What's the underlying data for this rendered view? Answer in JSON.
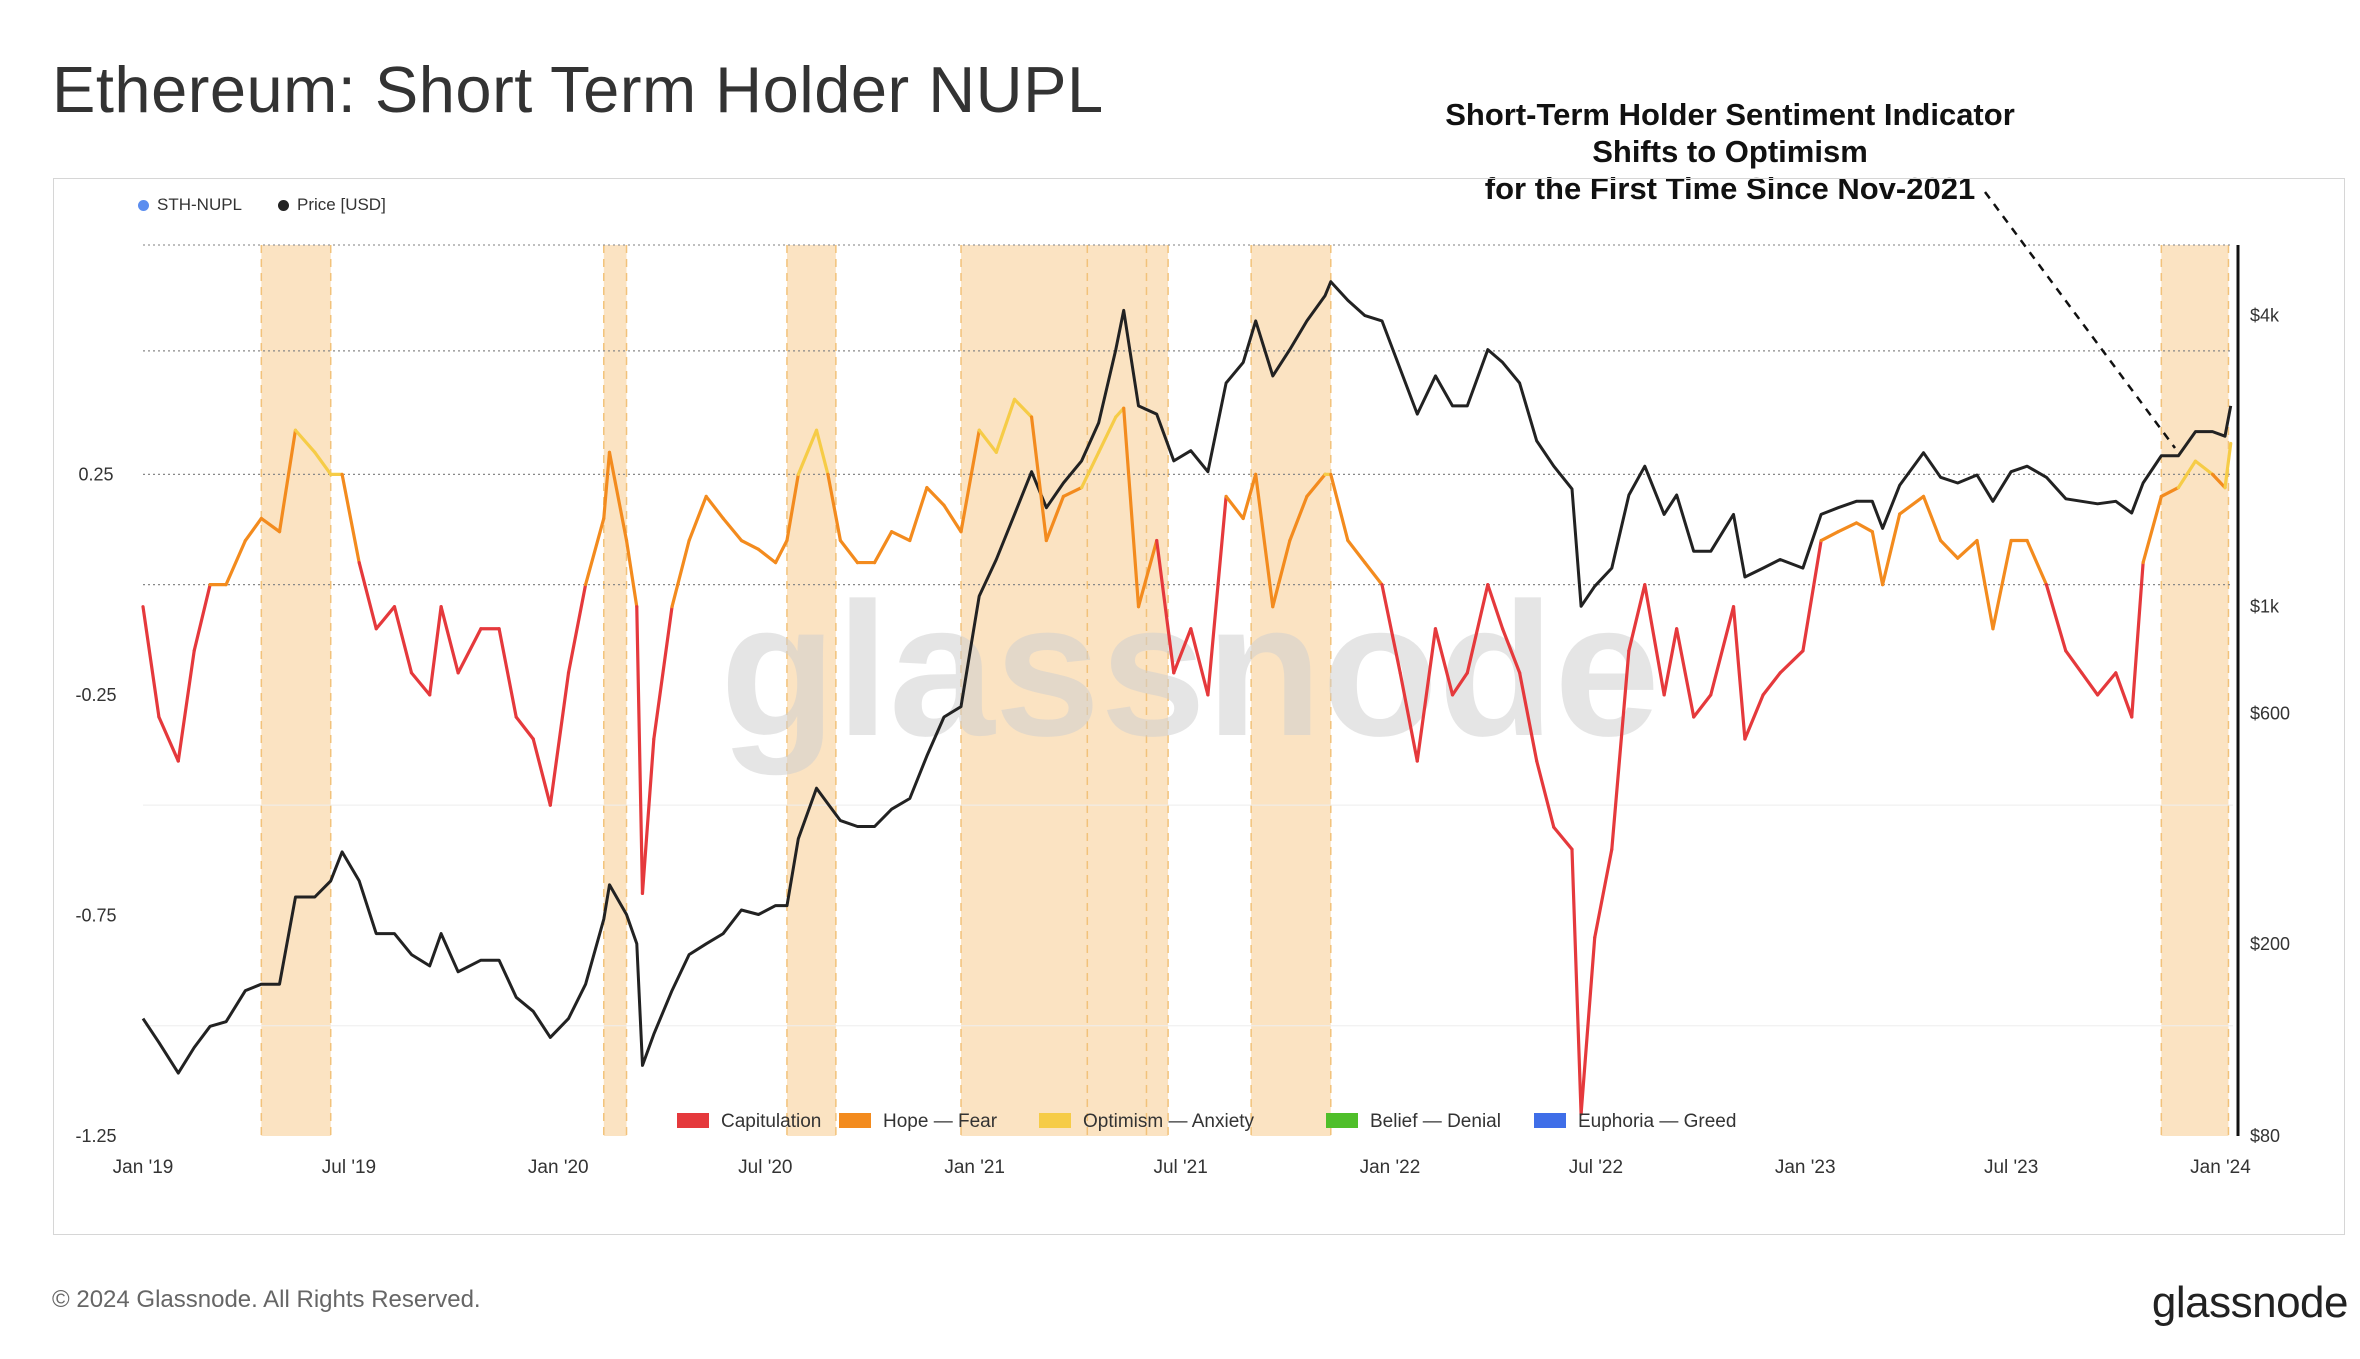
{
  "title": "Ethereum: Short Term Holder NUPL",
  "annotation": {
    "lines": [
      "Short-Term Holder Sentiment Indicator",
      "Shifts to Optimism",
      "for the First Time Since Nov-2021"
    ]
  },
  "footer": "© 2024 Glassnode. All Rights Reserved.",
  "brand": "glassnode",
  "watermark": "glassnode",
  "colors": {
    "capitulation": "#e5393c",
    "hope_fear": "#f38b1e",
    "optimism_anxiety": "#f6cc47",
    "belief_denial": "#4fbf2a",
    "euphoria_greed": "#3f6ee8",
    "price": "#222222",
    "sth_nupl_dot": "#5b8def",
    "highlight": "#fbe3c2"
  },
  "chart_data": {
    "type": "line",
    "top_legend": [
      {
        "label": "STH-NUPL",
        "color": "#5b8def"
      },
      {
        "label": "Price [USD]",
        "color": "#222222"
      }
    ],
    "zone_legend": [
      {
        "label": "Capitulation",
        "color": "#e5393c"
      },
      {
        "label": "Hope — Fear",
        "color": "#f38b1e"
      },
      {
        "label": "Optimism — Anxiety",
        "color": "#f6cc47"
      },
      {
        "label": "Belief — Denial",
        "color": "#4fbf2a"
      },
      {
        "label": "Euphoria — Greed",
        "color": "#3f6ee8"
      }
    ],
    "x_ticks": [
      "Jan '19",
      "Jul '19",
      "Jan '20",
      "Jul '20",
      "Jan '21",
      "Jul '21",
      "Jan '22",
      "Jul '22",
      "Jan '23",
      "Jul '23",
      "Jan '24"
    ],
    "xlim": [
      "2019-01-01",
      "2024-01-12"
    ],
    "left_axis": {
      "ticks": [
        0.25,
        -0.25,
        -0.75,
        -1.25
      ],
      "labels": [
        "0.25",
        "-0.25",
        "-0.75",
        "-1.25"
      ],
      "range": [
        -1.25,
        0.77
      ]
    },
    "right_axis": {
      "scale": "log",
      "ticks": [
        4000,
        1000,
        600,
        200,
        80
      ],
      "labels": [
        "$4k",
        "$1k",
        "$600",
        "$200",
        "$80"
      ],
      "range": [
        80,
        5600
      ]
    },
    "highlight_periods": [
      [
        "2019-04-15",
        "2019-06-15"
      ],
      [
        "2020-02-10",
        "2020-03-01"
      ],
      [
        "2020-07-20",
        "2020-09-01"
      ],
      [
        "2020-12-20",
        "2021-06-20"
      ],
      [
        "2021-04-10",
        "2021-06-01"
      ],
      [
        "2021-09-01",
        "2021-11-10"
      ],
      [
        "2023-11-10",
        "2024-01-08"
      ]
    ],
    "price_series": {
      "name": "Price [USD]",
      "points": [
        [
          "2019-01-01",
          140
        ],
        [
          "2019-01-15",
          125
        ],
        [
          "2019-02-01",
          108
        ],
        [
          "2019-02-15",
          122
        ],
        [
          "2019-03-01",
          135
        ],
        [
          "2019-03-15",
          138
        ],
        [
          "2019-04-01",
          160
        ],
        [
          "2019-04-15",
          165
        ],
        [
          "2019-05-01",
          165
        ],
        [
          "2019-05-15",
          250
        ],
        [
          "2019-06-01",
          250
        ],
        [
          "2019-06-15",
          270
        ],
        [
          "2019-06-25",
          310
        ],
        [
          "2019-07-10",
          270
        ],
        [
          "2019-07-25",
          210
        ],
        [
          "2019-08-10",
          210
        ],
        [
          "2019-08-25",
          190
        ],
        [
          "2019-09-10",
          180
        ],
        [
          "2019-09-20",
          210
        ],
        [
          "2019-10-05",
          175
        ],
        [
          "2019-10-25",
          185
        ],
        [
          "2019-11-10",
          185
        ],
        [
          "2019-11-25",
          155
        ],
        [
          "2019-12-10",
          145
        ],
        [
          "2019-12-25",
          128
        ],
        [
          "2020-01-10",
          140
        ],
        [
          "2020-01-25",
          165
        ],
        [
          "2020-02-10",
          225
        ],
        [
          "2020-02-15",
          265
        ],
        [
          "2020-03-01",
          230
        ],
        [
          "2020-03-10",
          200
        ],
        [
          "2020-03-15",
          112
        ],
        [
          "2020-03-25",
          130
        ],
        [
          "2020-04-10",
          160
        ],
        [
          "2020-04-25",
          190
        ],
        [
          "2020-05-10",
          200
        ],
        [
          "2020-05-25",
          210
        ],
        [
          "2020-06-10",
          235
        ],
        [
          "2020-06-25",
          230
        ],
        [
          "2020-07-10",
          240
        ],
        [
          "2020-07-20",
          240
        ],
        [
          "2020-07-30",
          330
        ],
        [
          "2020-08-15",
          420
        ],
        [
          "2020-08-25",
          390
        ],
        [
          "2020-09-05",
          360
        ],
        [
          "2020-09-20",
          350
        ],
        [
          "2020-10-05",
          350
        ],
        [
          "2020-10-20",
          380
        ],
        [
          "2020-11-05",
          400
        ],
        [
          "2020-11-20",
          490
        ],
        [
          "2020-12-05",
          590
        ],
        [
          "2020-12-20",
          620
        ],
        [
          "2021-01-05",
          1050
        ],
        [
          "2021-01-20",
          1250
        ],
        [
          "2021-02-05",
          1550
        ],
        [
          "2021-02-20",
          1900
        ],
        [
          "2021-03-05",
          1600
        ],
        [
          "2021-03-20",
          1800
        ],
        [
          "2021-04-05",
          2000
        ],
        [
          "2021-04-20",
          2400
        ],
        [
          "2021-05-05",
          3400
        ],
        [
          "2021-05-12",
          4100
        ],
        [
          "2021-05-25",
          2600
        ],
        [
          "2021-06-10",
          2500
        ],
        [
          "2021-06-25",
          2000
        ],
        [
          "2021-07-10",
          2100
        ],
        [
          "2021-07-25",
          1900
        ],
        [
          "2021-08-10",
          2900
        ],
        [
          "2021-08-25",
          3200
        ],
        [
          "2021-09-05",
          3900
        ],
        [
          "2021-09-20",
          3000
        ],
        [
          "2021-10-05",
          3400
        ],
        [
          "2021-10-20",
          3900
        ],
        [
          "2021-11-05",
          4400
        ],
        [
          "2021-11-10",
          4700
        ],
        [
          "2021-11-25",
          4300
        ],
        [
          "2021-12-10",
          4000
        ],
        [
          "2021-12-25",
          3900
        ],
        [
          "2022-01-10",
          3100
        ],
        [
          "2022-01-25",
          2500
        ],
        [
          "2022-02-10",
          3000
        ],
        [
          "2022-02-25",
          2600
        ],
        [
          "2022-03-10",
          2600
        ],
        [
          "2022-03-28",
          3400
        ],
        [
          "2022-04-10",
          3200
        ],
        [
          "2022-04-25",
          2900
        ],
        [
          "2022-05-10",
          2200
        ],
        [
          "2022-05-25",
          1950
        ],
        [
          "2022-06-10",
          1750
        ],
        [
          "2022-06-18",
          1000
        ],
        [
          "2022-06-30",
          1100
        ],
        [
          "2022-07-15",
          1200
        ],
        [
          "2022-07-30",
          1700
        ],
        [
          "2022-08-13",
          1950
        ],
        [
          "2022-08-30",
          1550
        ],
        [
          "2022-09-10",
          1700
        ],
        [
          "2022-09-25",
          1300
        ],
        [
          "2022-10-10",
          1300
        ],
        [
          "2022-10-30",
          1550
        ],
        [
          "2022-11-09",
          1150
        ],
        [
          "2022-11-25",
          1200
        ],
        [
          "2022-12-10",
          1250
        ],
        [
          "2022-12-30",
          1200
        ],
        [
          "2023-01-15",
          1550
        ],
        [
          "2023-01-30",
          1600
        ],
        [
          "2023-02-15",
          1650
        ],
        [
          "2023-03-01",
          1650
        ],
        [
          "2023-03-10",
          1450
        ],
        [
          "2023-03-25",
          1780
        ],
        [
          "2023-04-15",
          2080
        ],
        [
          "2023-04-30",
          1850
        ],
        [
          "2023-05-15",
          1800
        ],
        [
          "2023-06-01",
          1870
        ],
        [
          "2023-06-15",
          1650
        ],
        [
          "2023-07-01",
          1900
        ],
        [
          "2023-07-15",
          1950
        ],
        [
          "2023-08-01",
          1850
        ],
        [
          "2023-08-18",
          1670
        ],
        [
          "2023-09-01",
          1650
        ],
        [
          "2023-09-15",
          1630
        ],
        [
          "2023-10-01",
          1650
        ],
        [
          "2023-10-15",
          1560
        ],
        [
          "2023-10-25",
          1800
        ],
        [
          "2023-11-10",
          2050
        ],
        [
          "2023-11-25",
          2050
        ],
        [
          "2023-12-10",
          2300
        ],
        [
          "2023-12-25",
          2300
        ],
        [
          "2024-01-05",
          2250
        ],
        [
          "2024-01-10",
          2600
        ]
      ]
    },
    "sth_nupl_series": {
      "name": "STH-NUPL",
      "points": [
        [
          "2019-01-01",
          -0.05
        ],
        [
          "2019-01-15",
          -0.3
        ],
        [
          "2019-02-01",
          -0.4
        ],
        [
          "2019-02-15",
          -0.15
        ],
        [
          "2019-03-01",
          0.0
        ],
        [
          "2019-03-15",
          0.0
        ],
        [
          "2019-04-01",
          0.1
        ],
        [
          "2019-04-15",
          0.15
        ],
        [
          "2019-05-01",
          0.12
        ],
        [
          "2019-05-15",
          0.35
        ],
        [
          "2019-06-01",
          0.3
        ],
        [
          "2019-06-15",
          0.25
        ],
        [
          "2019-06-25",
          0.25
        ],
        [
          "2019-07-10",
          0.05
        ],
        [
          "2019-07-25",
          -0.1
        ],
        [
          "2019-08-10",
          -0.05
        ],
        [
          "2019-08-25",
          -0.2
        ],
        [
          "2019-09-10",
          -0.25
        ],
        [
          "2019-09-20",
          -0.05
        ],
        [
          "2019-10-05",
          -0.2
        ],
        [
          "2019-10-25",
          -0.1
        ],
        [
          "2019-11-10",
          -0.1
        ],
        [
          "2019-11-25",
          -0.3
        ],
        [
          "2019-12-10",
          -0.35
        ],
        [
          "2019-12-25",
          -0.5
        ],
        [
          "2020-01-10",
          -0.2
        ],
        [
          "2020-01-25",
          0.0
        ],
        [
          "2020-02-10",
          0.15
        ],
        [
          "2020-02-15",
          0.3
        ],
        [
          "2020-03-01",
          0.1
        ],
        [
          "2020-03-10",
          -0.05
        ],
        [
          "2020-03-15",
          -0.7
        ],
        [
          "2020-03-25",
          -0.35
        ],
        [
          "2020-04-10",
          -0.05
        ],
        [
          "2020-04-25",
          0.1
        ],
        [
          "2020-05-10",
          0.2
        ],
        [
          "2020-05-25",
          0.15
        ],
        [
          "2020-06-10",
          0.1
        ],
        [
          "2020-06-25",
          0.08
        ],
        [
          "2020-07-10",
          0.05
        ],
        [
          "2020-07-20",
          0.1
        ],
        [
          "2020-07-30",
          0.25
        ],
        [
          "2020-08-15",
          0.35
        ],
        [
          "2020-08-25",
          0.25
        ],
        [
          "2020-09-05",
          0.1
        ],
        [
          "2020-09-20",
          0.05
        ],
        [
          "2020-10-05",
          0.05
        ],
        [
          "2020-10-20",
          0.12
        ],
        [
          "2020-11-05",
          0.1
        ],
        [
          "2020-11-20",
          0.22
        ],
        [
          "2020-12-05",
          0.18
        ],
        [
          "2020-12-20",
          0.12
        ],
        [
          "2021-01-05",
          0.35
        ],
        [
          "2021-01-20",
          0.3
        ],
        [
          "2021-02-05",
          0.42
        ],
        [
          "2021-02-20",
          0.38
        ],
        [
          "2021-03-05",
          0.1
        ],
        [
          "2021-03-20",
          0.2
        ],
        [
          "2021-04-05",
          0.22
        ],
        [
          "2021-04-20",
          0.3
        ],
        [
          "2021-05-05",
          0.38
        ],
        [
          "2021-05-12",
          0.4
        ],
        [
          "2021-05-25",
          -0.05
        ],
        [
          "2021-06-10",
          0.1
        ],
        [
          "2021-06-25",
          -0.2
        ],
        [
          "2021-07-10",
          -0.1
        ],
        [
          "2021-07-25",
          -0.25
        ],
        [
          "2021-08-10",
          0.2
        ],
        [
          "2021-08-25",
          0.15
        ],
        [
          "2021-09-05",
          0.25
        ],
        [
          "2021-09-20",
          -0.05
        ],
        [
          "2021-10-05",
          0.1
        ],
        [
          "2021-10-20",
          0.2
        ],
        [
          "2021-11-05",
          0.25
        ],
        [
          "2021-11-10",
          0.25
        ],
        [
          "2021-11-25",
          0.1
        ],
        [
          "2021-12-10",
          0.05
        ],
        [
          "2021-12-25",
          0.0
        ],
        [
          "2022-01-10",
          -0.2
        ],
        [
          "2022-01-25",
          -0.4
        ],
        [
          "2022-02-10",
          -0.1
        ],
        [
          "2022-02-25",
          -0.25
        ],
        [
          "2022-03-10",
          -0.2
        ],
        [
          "2022-03-28",
          0.0
        ],
        [
          "2022-04-10",
          -0.1
        ],
        [
          "2022-04-25",
          -0.2
        ],
        [
          "2022-05-10",
          -0.4
        ],
        [
          "2022-05-25",
          -0.55
        ],
        [
          "2022-06-10",
          -0.6
        ],
        [
          "2022-06-18",
          -1.2
        ],
        [
          "2022-06-30",
          -0.8
        ],
        [
          "2022-07-15",
          -0.6
        ],
        [
          "2022-07-30",
          -0.15
        ],
        [
          "2022-08-13",
          0.0
        ],
        [
          "2022-08-30",
          -0.25
        ],
        [
          "2022-09-10",
          -0.1
        ],
        [
          "2022-09-25",
          -0.3
        ],
        [
          "2022-10-10",
          -0.25
        ],
        [
          "2022-10-30",
          -0.05
        ],
        [
          "2022-11-09",
          -0.35
        ],
        [
          "2022-11-25",
          -0.25
        ],
        [
          "2022-12-10",
          -0.2
        ],
        [
          "2022-12-30",
          -0.15
        ],
        [
          "2023-01-15",
          0.1
        ],
        [
          "2023-01-30",
          0.12
        ],
        [
          "2023-02-15",
          0.14
        ],
        [
          "2023-03-01",
          0.12
        ],
        [
          "2023-03-10",
          0.0
        ],
        [
          "2023-03-25",
          0.16
        ],
        [
          "2023-04-15",
          0.2
        ],
        [
          "2023-04-30",
          0.1
        ],
        [
          "2023-05-15",
          0.06
        ],
        [
          "2023-06-01",
          0.1
        ],
        [
          "2023-06-15",
          -0.1
        ],
        [
          "2023-07-01",
          0.1
        ],
        [
          "2023-07-15",
          0.1
        ],
        [
          "2023-08-01",
          0.0
        ],
        [
          "2023-08-18",
          -0.15
        ],
        [
          "2023-09-01",
          -0.2
        ],
        [
          "2023-09-15",
          -0.25
        ],
        [
          "2023-10-01",
          -0.2
        ],
        [
          "2023-10-15",
          -0.3
        ],
        [
          "2023-10-25",
          0.05
        ],
        [
          "2023-11-10",
          0.2
        ],
        [
          "2023-11-25",
          0.22
        ],
        [
          "2023-12-10",
          0.28
        ],
        [
          "2023-12-25",
          0.25
        ],
        [
          "2024-01-05",
          0.22
        ],
        [
          "2024-01-10",
          0.32
        ]
      ]
    }
  }
}
